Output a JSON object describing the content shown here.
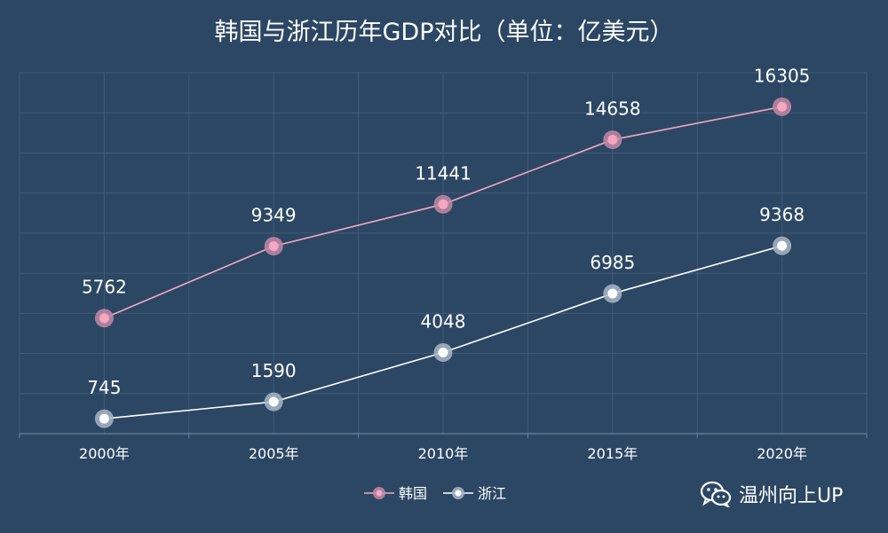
{
  "chart_data": {
    "type": "line",
    "title": "韩国与浙江历年GDP对比（单位：亿美元）",
    "xlabel": "",
    "ylabel": "",
    "categories": [
      "2000年",
      "2005年",
      "2010年",
      "2015年",
      "2020年"
    ],
    "ylim": [
      0,
      18000
    ],
    "grid": true,
    "legend_position": "bottom",
    "series": [
      {
        "name": "韩国",
        "values": [
          5762,
          9349,
          11441,
          14658,
          16305
        ],
        "color": "#f4a7c0",
        "halo": "#c48aa6"
      },
      {
        "name": "浙江",
        "values": [
          745,
          1590,
          4048,
          6985,
          9368
        ],
        "color": "#ffffff",
        "halo": "#a9b7c7"
      }
    ]
  },
  "watermark": {
    "icon": "wechat-icon",
    "text": "温州向上UP"
  }
}
